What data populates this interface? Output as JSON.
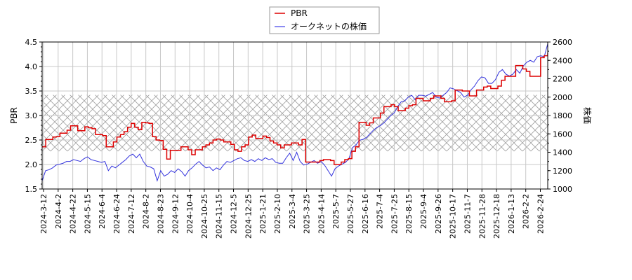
{
  "chart_data": {
    "type": "line",
    "title": "",
    "legend": {
      "position": "top-center",
      "entries": [
        {
          "label": "PBR",
          "color": "#dd0000"
        },
        {
          "label": "オークネットの株価",
          "color": "#3333dd"
        }
      ]
    },
    "xlabel": "",
    "ylabel_left": "PBR",
    "ylabel_right": "株価",
    "ylim_left": [
      1.5,
      4.5
    ],
    "ylim_right": [
      1000,
      2600
    ],
    "yticks_left": [
      "1.5",
      "2.0",
      "2.5",
      "3.0",
      "3.5",
      "4.0",
      "4.5"
    ],
    "yticks_right": [
      "1000",
      "1200",
      "1400",
      "1600",
      "1800",
      "2000",
      "2200",
      "2400",
      "2600"
    ],
    "grid": true,
    "shaded_band_left": {
      "from": 2.27,
      "to": 3.42,
      "style": "crosshatch"
    },
    "x_tick_labels": [
      "2024-3-12",
      "2024-4-2",
      "2024-4-22",
      "2024-5-15",
      "2024-6-4",
      "2024-6-24",
      "2024-7-12",
      "2024-8-2",
      "2024-8-23",
      "2024-9-12",
      "2024-10-4",
      "2024-10-25",
      "2024-11-15",
      "2024-12-5",
      "2024-12-25",
      "2025-1-21",
      "2025-2-10",
      "2025-3-4",
      "2025-3-25",
      "2025-4-14",
      "2025-5-7",
      "2025-5-27",
      "2025-6-16",
      "2025-7-4",
      "2025-7-25",
      "2025-8-15",
      "2025-9-4",
      "2025-9-26",
      "2025-10-17",
      "2025-11-7",
      "2025-11-28",
      "2025-12-18",
      "2026-1-13",
      "2026-2-2",
      "2026-2-24"
    ],
    "series": [
      {
        "name": "PBR",
        "axis": "left",
        "color": "#dd0000",
        "step": true,
        "values": [
          2.36,
          2.51,
          2.51,
          2.56,
          2.57,
          2.64,
          2.64,
          2.7,
          2.79,
          2.79,
          2.69,
          2.69,
          2.77,
          2.75,
          2.73,
          2.61,
          2.61,
          2.59,
          2.36,
          2.36,
          2.46,
          2.56,
          2.61,
          2.67,
          2.76,
          2.84,
          2.76,
          2.71,
          2.86,
          2.85,
          2.84,
          2.57,
          2.5,
          2.49,
          2.31,
          2.11,
          2.29,
          2.29,
          2.29,
          2.36,
          2.36,
          2.3,
          2.2,
          2.3,
          2.3,
          2.36,
          2.4,
          2.44,
          2.5,
          2.52,
          2.5,
          2.46,
          2.46,
          2.41,
          2.3,
          2.27,
          2.36,
          2.4,
          2.56,
          2.6,
          2.53,
          2.53,
          2.58,
          2.55,
          2.48,
          2.44,
          2.4,
          2.34,
          2.4,
          2.4,
          2.44,
          2.44,
          2.4,
          2.51,
          2.05,
          2.05,
          2.05,
          2.05,
          2.08,
          2.1,
          2.1,
          2.08,
          2.0,
          2.0,
          2.05,
          2.1,
          2.12,
          2.27,
          2.36,
          2.86,
          2.86,
          2.8,
          2.85,
          2.95,
          2.95,
          3.05,
          3.18,
          3.18,
          3.22,
          3.18,
          3.1,
          3.1,
          3.15,
          3.2,
          3.22,
          3.35,
          3.35,
          3.3,
          3.3,
          3.35,
          3.4,
          3.4,
          3.35,
          3.28,
          3.28,
          3.3,
          3.52,
          3.52,
          3.5,
          3.5,
          3.4,
          3.4,
          3.52,
          3.52,
          3.58,
          3.6,
          3.55,
          3.55,
          3.6,
          3.72,
          3.8,
          3.8,
          3.8,
          4.02,
          4.02,
          3.95,
          3.9,
          3.8,
          3.8,
          3.8,
          4.18,
          4.22,
          4.28
        ]
      },
      {
        "name": "オークネットの株価",
        "axis": "right",
        "color": "#3333dd",
        "step": false,
        "values": [
          1090,
          1200,
          1210,
          1230,
          1260,
          1270,
          1280,
          1300,
          1300,
          1320,
          1310,
          1300,
          1330,
          1350,
          1320,
          1310,
          1300,
          1290,
          1300,
          1200,
          1250,
          1230,
          1260,
          1290,
          1320,
          1360,
          1380,
          1340,
          1380,
          1300,
          1250,
          1240,
          1220,
          1090,
          1200,
          1140,
          1160,
          1200,
          1180,
          1220,
          1190,
          1140,
          1200,
          1230,
          1270,
          1300,
          1260,
          1230,
          1240,
          1200,
          1230,
          1210,
          1260,
          1300,
          1290,
          1310,
          1330,
          1340,
          1310,
          1300,
          1320,
          1300,
          1330,
          1310,
          1340,
          1320,
          1330,
          1290,
          1280,
          1280,
          1340,
          1390,
          1310,
          1400,
          1300,
          1260,
          1270,
          1290,
          1310,
          1280,
          1300,
          1260,
          1200,
          1140,
          1220,
          1250,
          1270,
          1290,
          1330,
          1450,
          1480,
          1530,
          1540,
          1560,
          1600,
          1640,
          1670,
          1690,
          1720,
          1760,
          1800,
          1830,
          1900,
          1950,
          1960,
          2000,
          2020,
          1970,
          2020,
          2020,
          2010,
          2030,
          2050,
          2000,
          1990,
          2020,
          2050,
          2100,
          2090,
          2070,
          2050,
          2000,
          2020,
          2080,
          2120,
          2180,
          2220,
          2210,
          2150,
          2150,
          2190,
          2270,
          2300,
          2250,
          2230,
          2250,
          2300,
          2260,
          2340,
          2380,
          2400,
          2380,
          2440,
          2450,
          2440,
          2580
        ]
      }
    ]
  }
}
